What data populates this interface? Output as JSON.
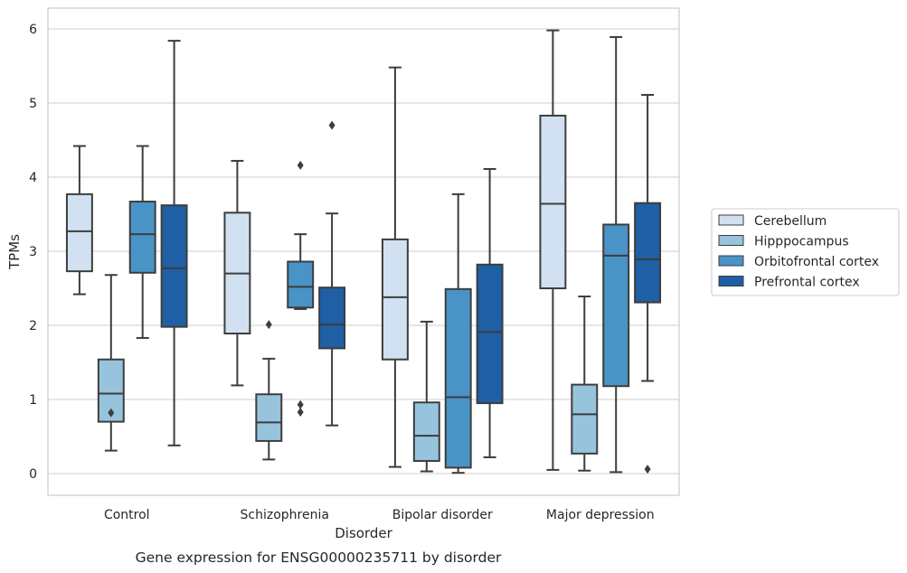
{
  "chart_data": {
    "type": "boxplot",
    "xlabel": "Disorder",
    "ylabel": "TPMs",
    "caption": "Gene expression for ENSG00000235711 by disorder",
    "ylim": [
      -0.3,
      6.28
    ],
    "yticks": [
      0,
      1,
      2,
      3,
      4,
      5,
      6
    ],
    "grid": "horizontal",
    "legend_position": "right",
    "categories": [
      "Control",
      "Schizophrenia",
      "Bipolar disorder",
      "Major depression"
    ],
    "series": [
      {
        "name": "Cerebellum",
        "color": "#d1e1f1",
        "boxes": [
          {
            "whislo": 2.42,
            "q1": 2.73,
            "med": 3.27,
            "q3": 3.77,
            "whishi": 4.42,
            "fliers": []
          },
          {
            "whislo": 1.19,
            "q1": 1.89,
            "med": 2.7,
            "q3": 3.52,
            "whishi": 4.22,
            "fliers": []
          },
          {
            "whislo": 0.09,
            "q1": 1.54,
            "med": 2.38,
            "q3": 3.16,
            "whishi": 5.48,
            "fliers": []
          },
          {
            "whislo": 0.05,
            "q1": 2.5,
            "med": 3.64,
            "q3": 4.83,
            "whishi": 5.98,
            "fliers": []
          }
        ]
      },
      {
        "name": "Hipppocampus",
        "color": "#98c3dd",
        "boxes": [
          {
            "whislo": 0.31,
            "q1": 0.7,
            "med": 1.08,
            "q3": 1.54,
            "whishi": 2.68,
            "fliers": [
              0.82
            ]
          },
          {
            "whislo": 0.19,
            "q1": 0.44,
            "med": 0.69,
            "q3": 1.07,
            "whishi": 1.55,
            "fliers": [
              2.01
            ]
          },
          {
            "whislo": 0.03,
            "q1": 0.17,
            "med": 0.51,
            "q3": 0.96,
            "whishi": 2.05,
            "fliers": []
          },
          {
            "whislo": 0.04,
            "q1": 0.27,
            "med": 0.8,
            "q3": 1.2,
            "whishi": 2.39,
            "fliers": []
          }
        ]
      },
      {
        "name": "Orbitofrontal cortex",
        "color": "#4a93c6",
        "boxes": [
          {
            "whislo": 1.83,
            "q1": 2.71,
            "med": 3.23,
            "q3": 3.67,
            "whishi": 4.42,
            "fliers": []
          },
          {
            "whislo": 2.22,
            "q1": 2.24,
            "med": 2.52,
            "q3": 2.86,
            "whishi": 3.23,
            "fliers": [
              4.16,
              0.93,
              0.83
            ]
          },
          {
            "whislo": 0.01,
            "q1": 0.08,
            "med": 1.03,
            "q3": 2.49,
            "whishi": 3.77,
            "fliers": []
          },
          {
            "whislo": 0.02,
            "q1": 1.18,
            "med": 2.94,
            "q3": 3.36,
            "whishi": 5.89,
            "fliers": []
          }
        ]
      },
      {
        "name": "Prefrontal cortex",
        "color": "#1f5fa5",
        "boxes": [
          {
            "whislo": 0.38,
            "q1": 1.98,
            "med": 2.77,
            "q3": 3.62,
            "whishi": 5.84,
            "fliers": []
          },
          {
            "whislo": 0.65,
            "q1": 1.69,
            "med": 2.01,
            "q3": 2.51,
            "whishi": 3.51,
            "fliers": [
              4.7
            ]
          },
          {
            "whislo": 0.22,
            "q1": 0.95,
            "med": 1.91,
            "q3": 2.82,
            "whishi": 4.11,
            "fliers": []
          },
          {
            "whislo": 1.25,
            "q1": 2.31,
            "med": 2.89,
            "q3": 3.65,
            "whishi": 5.11,
            "fliers": [
              0.06
            ]
          }
        ]
      }
    ]
  }
}
